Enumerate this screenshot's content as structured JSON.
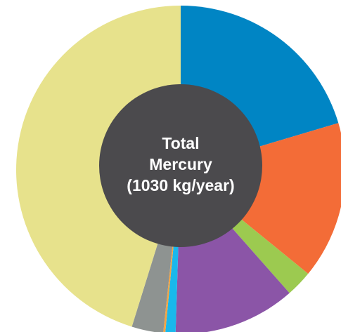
{
  "chart_data": {
    "type": "donut",
    "center_label": [
      "Total",
      "Mercury",
      "(1030 kg/year)"
    ],
    "values": [
      20.4,
      15.5,
      2.6,
      12.0,
      1.0,
      0.2,
      3.1,
      45.2
    ],
    "colors": [
      "#0085c4",
      "#f36c37",
      "#9cca50",
      "#8b55a7",
      "#19b8ec",
      "#f5a442",
      "#8e9391",
      "#e7e28c"
    ],
    "start": "top",
    "direction": "clockwise"
  }
}
